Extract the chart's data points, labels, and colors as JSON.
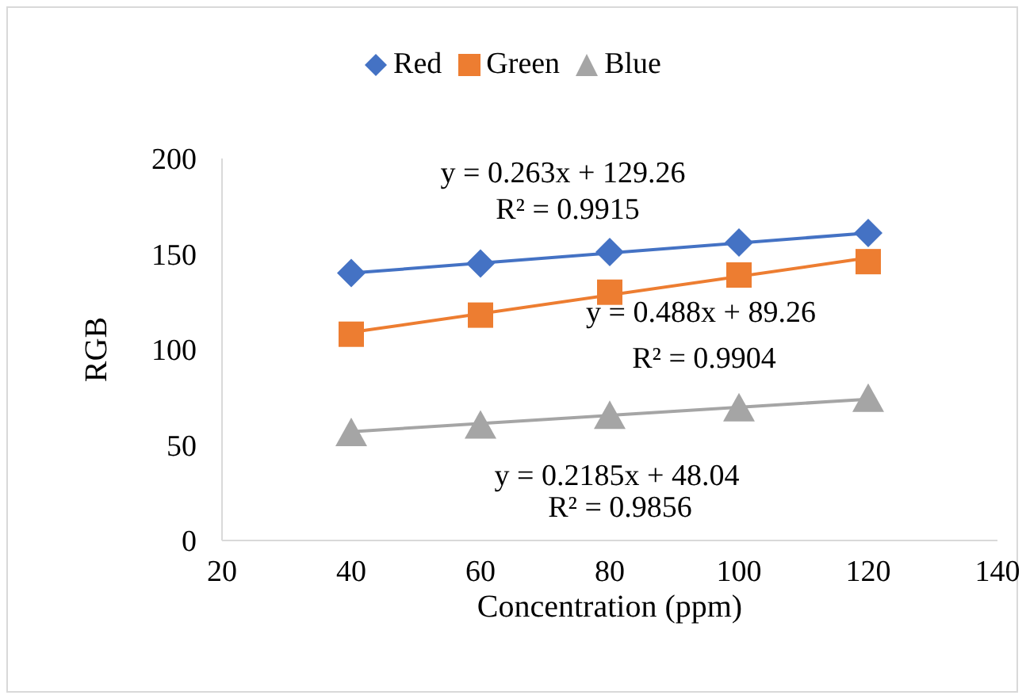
{
  "chart_data": {
    "type": "scatter",
    "xlabel": "Concentration (ppm)",
    "ylabel": "RGB",
    "xlim": [
      20,
      140
    ],
    "xticks": [
      20,
      40,
      60,
      80,
      100,
      120,
      140
    ],
    "ylim": [
      0,
      200
    ],
    "yticks": [
      0,
      50,
      100,
      150,
      200
    ],
    "grid": false,
    "legend": "top",
    "series": [
      {
        "name": "Red",
        "marker": "diamond",
        "color": "#4472c4",
        "x": [
          40,
          60,
          80,
          100,
          120
        ],
        "values": [
          140,
          145,
          151,
          156,
          161
        ]
      },
      {
        "name": "Green",
        "marker": "square",
        "color": "#ed7d31",
        "x": [
          40,
          60,
          80,
          100,
          120
        ],
        "values": [
          108,
          118,
          130,
          139,
          146
        ]
      },
      {
        "name": "Blue",
        "marker": "triangle",
        "color": "#a5a5a5",
        "x": [
          40,
          60,
          80,
          100,
          120
        ],
        "values": [
          56,
          60,
          65,
          69,
          74
        ]
      },
      {
        "type": "line",
        "marker": "none",
        "color": "#4472c4",
        "x": [
          40,
          120
        ],
        "values": [
          140,
          161
        ]
      },
      {
        "type": "line",
        "marker": "none",
        "color": "#ed7d31",
        "x": [
          40,
          120
        ],
        "values": [
          109,
          148
        ]
      },
      {
        "type": "line",
        "marker": "none",
        "color": "#a5a5a5",
        "x": [
          40,
          120
        ],
        "values": [
          57,
          74
        ]
      }
    ],
    "annotations": [
      "y = 0.263x + 129.26",
      "R² = 0.9915",
      "y = 0.488x + 89.26",
      "R² = 0.9904",
      "y = 0.2185x + 48.04",
      "R² = 0.9856"
    ]
  }
}
